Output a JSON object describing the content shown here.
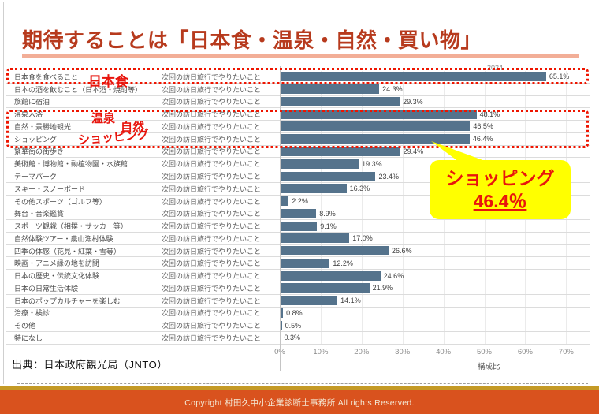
{
  "title": {
    "text": "期待することは「日本食・温泉・自然・買い物」"
  },
  "chart_data": {
    "type": "bar",
    "orientation": "horizontal",
    "year_header": "2024",
    "row_descriptor": "次回の訪日旅行でやりたいこと",
    "categories": [
      "日本食を食べること",
      "日本の酒を飲むこと（日本酒・焼酎等）",
      "旅館に宿泊",
      "温泉入浴",
      "自然・景勝地観光",
      "ショッピング",
      "繁華街の街歩き",
      "美術館・博物館・動植物園・水族館",
      "テーマパーク",
      "スキー・スノーボード",
      "その他スポーツ（ゴルフ等）",
      "舞台・音楽鑑賞",
      "スポーツ観戦（相撲・サッカー等）",
      "自然体験ツアー・農山漁村体験",
      "四季の体感（花見・紅葉・雪等）",
      "映画・アニメ縁の地を訪問",
      "日本の歴史・伝統文化体験",
      "日本の日常生活体験",
      "日本のポップカルチャーを楽しむ",
      "治療・検診",
      "その他",
      "特になし"
    ],
    "values": [
      65.1,
      24.3,
      29.3,
      48.1,
      46.5,
      46.4,
      29.4,
      19.3,
      23.4,
      16.3,
      2.2,
      8.9,
      9.1,
      17.0,
      26.6,
      12.2,
      24.6,
      21.9,
      14.1,
      0.8,
      0.5,
      0.3
    ],
    "x_ticks": [
      "0%",
      "10%",
      "20%",
      "30%",
      "40%",
      "50%",
      "60%",
      "70%"
    ],
    "xlim": [
      0,
      75
    ],
    "xlabel": "構成比",
    "bar_color": "#55738c",
    "grid": true,
    "legend": false
  },
  "annotations": {
    "food_label": "日本食",
    "onsen_label": "温泉",
    "nature_label": "自然",
    "shopping_label": "ショッピング",
    "callout": {
      "line1": "ショッピング",
      "line2": "46.4％"
    }
  },
  "source": {
    "text": "出典：日本政府観光局（JNTO）"
  },
  "footer": {
    "copyright": "Copyright 村田久中小企業診断士事務所 All rights Reserved."
  },
  "colors": {
    "title": "#b73a1d",
    "title_underline": "#f2ae97",
    "bar": "#55738c",
    "emphasis_red": "#ee1500",
    "callout_bg": "#ffff00",
    "footer_bg": "#d9521e",
    "gold_bar": "#c49a26"
  }
}
